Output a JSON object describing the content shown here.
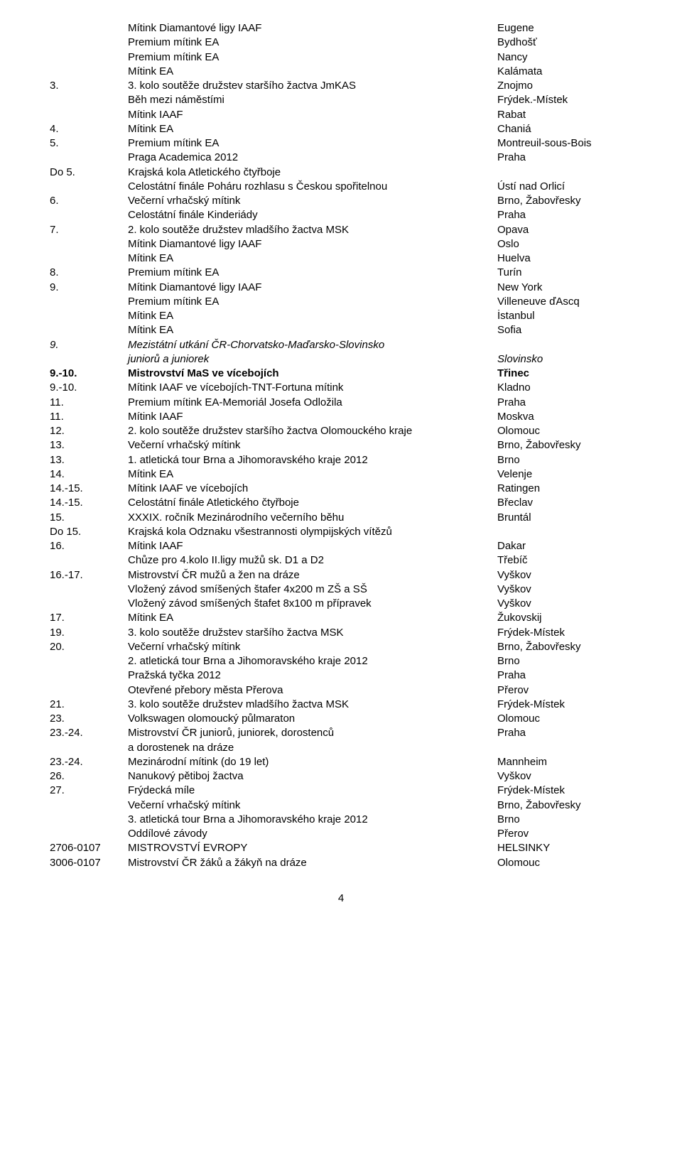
{
  "pageNumber": "4",
  "rows": [
    {
      "l": "",
      "m": "Mítink Diamantové ligy IAAF",
      "r": "Eugene"
    },
    {
      "l": "",
      "m": "Premium mítink EA",
      "r": "Bydhošť"
    },
    {
      "l": "",
      "m": "Premium mítink EA",
      "r": "Nancy"
    },
    {
      "l": "",
      "m": "Mítink EA",
      "r": "Kalámata"
    },
    {
      "l": "3.",
      "m": "3. kolo soutěže družstev staršího žactva JmKAS",
      "r": "Znojmo"
    },
    {
      "l": "",
      "m": "Běh mezi náměstími",
      "r": "Frýdek.-Místek"
    },
    {
      "l": "",
      "m": "Mítink IAAF",
      "r": "Rabat"
    },
    {
      "l": "4.",
      "m": "Mítink EA",
      "r": "Chaniá"
    },
    {
      "l": "5.",
      "m": "Premium mítink EA",
      "r": "Montreuil-sous-Bois"
    },
    {
      "l": "",
      "m": "Praga Academica 2012",
      "r": "Praha"
    },
    {
      "l": "Do 5.",
      "m": "Krajská kola Atletického čtyřboje",
      "r": ""
    },
    {
      "l": "",
      "m": "Celostátní finále Poháru rozhlasu s Českou spořitelnou",
      "r": "Ústí nad Orlicí"
    },
    {
      "l": "6.",
      "m": "Večerní vrhačský mítink",
      "r": "Brno, Žabovřesky"
    },
    {
      "l": "",
      "m": "Celostátní finále Kinderiády",
      "r": "Praha"
    },
    {
      "l": "7.",
      "m": "2. kolo soutěže družstev mladšího žactva MSK",
      "r": "Opava"
    },
    {
      "l": "",
      "m": "Mítink Diamantové ligy IAAF",
      "r": "Oslo"
    },
    {
      "l": "",
      "m": "Mítink EA",
      "r": "Huelva"
    },
    {
      "l": "8.",
      "m": "Premium mítink EA",
      "r": "Turín"
    },
    {
      "l": "9.",
      "m": "Mítink Diamantové ligy IAAF",
      "r": "New York"
    },
    {
      "l": "",
      "m": "Premium mítink EA",
      "r": "Villeneuve ďAscq"
    },
    {
      "l": "",
      "m": "Mítink EA",
      "r": "İstanbul"
    },
    {
      "l": "",
      "m": "Mítink EA",
      "r": "Sofia"
    },
    {
      "l": "9.",
      "m": "Mezistátní utkání ČR-Chorvatsko-Maďarsko-Slovinsko",
      "r": "",
      "italic": true
    },
    {
      "l": "",
      "m": "juniorů a juniorek",
      "r": "Slovinsko",
      "italic": true
    },
    {
      "l": "9.-10.",
      "m": "Mistrovství MaS ve vícebojích",
      "r": "Třinec",
      "bold": true
    },
    {
      "l": "9.-10.",
      "m": "Mítink IAAF ve vícebojích-TNT-Fortuna mítink",
      "r": "Kladno"
    },
    {
      "l": "11.",
      "m": "Premium mítink EA-Memoriál Josefa Odložila",
      "r": "Praha"
    },
    {
      "l": "11.",
      "m": "Mítink IAAF",
      "r": "Moskva"
    },
    {
      "l": "12.",
      "m": "2. kolo soutěže družstev staršího žactva Olomouckého kraje",
      "r": "Olomouc"
    },
    {
      "l": "13.",
      "m": "Večerní vrhačský mítink",
      "r": "Brno, Žabovřesky"
    },
    {
      "l": "13.",
      "m": "1. atletická tour Brna a Jihomoravského kraje 2012",
      "r": "Brno"
    },
    {
      "l": "14.",
      "m": "Mítink EA",
      "r": "Velenje"
    },
    {
      "l": "14.-15.",
      "m": "Mítink IAAF ve vícebojích",
      "r": "Ratingen"
    },
    {
      "l": "14.-15.",
      "m": "Celostátní finále Atletického čtyřboje",
      "r": "Břeclav"
    },
    {
      "l": "15.",
      "m": "XXXIX. ročník Mezinárodního večerního běhu",
      "r": "Bruntál"
    },
    {
      "l": "Do 15.",
      "m": "Krajská kola Odznaku všestrannosti olympijských vítězů",
      "r": ""
    },
    {
      "l": "16.",
      "m": "Mítink IAAF",
      "r": "Dakar"
    },
    {
      "l": "",
      "m": "Chůze pro 4.kolo II.ligy mužů sk. D1 a D2",
      "r": "Třebíč"
    },
    {
      "l": "16.-17.",
      "m": "Mistrovství ČR mužů a žen na dráze",
      "r": "Vyškov"
    },
    {
      "l": "",
      "m": "Vložený závod smíšených štafer 4x200 m ZŠ a SŠ",
      "r": "Vyškov"
    },
    {
      "l": "",
      "m": "Vložený závod smíšených štafet 8x100 m přípravek",
      "r": "Vyškov"
    },
    {
      "l": "17.",
      "m": "Mítink EA",
      "r": "Žukovskij"
    },
    {
      "l": "19.",
      "m": "3. kolo soutěže družstev staršího žactva MSK",
      "r": "Frýdek-Místek"
    },
    {
      "l": "20.",
      "m": "Večerní vrhačský mítink",
      "r": "Brno, Žabovřesky"
    },
    {
      "l": "",
      "m": "2. atletická tour Brna a Jihomoravského kraje 2012",
      "r": "Brno"
    },
    {
      "l": "",
      "m": "Pražská tyčka 2012",
      "r": "Praha"
    },
    {
      "l": "",
      "m": "Otevřené přebory města Přerova",
      "r": "Přerov"
    },
    {
      "l": "21.",
      "m": "3. kolo soutěže družstev mladšího žactva MSK",
      "r": "Frýdek-Místek"
    },
    {
      "l": "23.",
      "m": "Volkswagen olomoucký půlmaraton",
      "r": "Olomouc"
    },
    {
      "l": "23.-24.",
      "m": "Mistrovství ČR juniorů, juniorek, dorostenců",
      "r": "Praha"
    },
    {
      "l": "",
      "m": "a dorostenek na dráze",
      "r": ""
    },
    {
      "l": "23.-24.",
      "m": "Mezinárodní mítink (do 19 let)",
      "r": "Mannheim"
    },
    {
      "l": "26.",
      "m": "Nanukový pětiboj žactva",
      "r": "Vyškov"
    },
    {
      "l": "27.",
      "m": "Frýdecká míle",
      "r": "Frýdek-Místek"
    },
    {
      "l": "",
      "m": "Večerní vrhačský mítink",
      "r": "Brno, Žabovřesky"
    },
    {
      "l": "",
      "m": "3. atletická tour Brna a Jihomoravského kraje 2012",
      "r": "Brno"
    },
    {
      "l": "",
      "m": "Oddílové závody",
      "r": "Přerov"
    },
    {
      "l": "2706-0107",
      "m": "MISTROVSTVÍ EVROPY",
      "r": "HELSINKY"
    },
    {
      "l": "3006-0107",
      "m": "Mistrovství ČR žáků a žákyň na dráze",
      "r": "Olomouc"
    }
  ]
}
